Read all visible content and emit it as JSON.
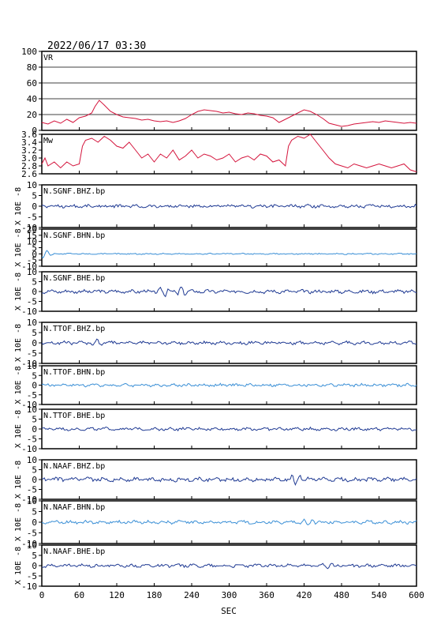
{
  "header": {
    "timestamp": "2022/06/17 03:30"
  },
  "chart_data": {
    "type": "line",
    "xlabel": "SEC",
    "xlim": [
      0,
      600
    ],
    "xticks": [
      0,
      60,
      120,
      180,
      240,
      300,
      360,
      420,
      480,
      540,
      600
    ],
    "panels": [
      {
        "label": "VR",
        "ylim": [
          0,
          100
        ],
        "yticks": [
          0,
          20,
          40,
          60,
          80,
          100
        ],
        "grid": true,
        "color": "#d4143c",
        "series": [
          [
            0,
            10
          ],
          [
            10,
            8
          ],
          [
            20,
            12
          ],
          [
            30,
            9
          ],
          [
            40,
            14
          ],
          [
            50,
            10
          ],
          [
            60,
            16
          ],
          [
            70,
            18
          ],
          [
            80,
            22
          ],
          [
            85,
            30
          ],
          [
            92,
            38
          ],
          [
            100,
            32
          ],
          [
            110,
            24
          ],
          [
            120,
            20
          ],
          [
            130,
            17
          ],
          [
            140,
            16
          ],
          [
            150,
            15
          ],
          [
            160,
            13
          ],
          [
            170,
            14
          ],
          [
            180,
            12
          ],
          [
            190,
            11
          ],
          [
            200,
            12
          ],
          [
            210,
            10
          ],
          [
            220,
            12
          ],
          [
            230,
            15
          ],
          [
            240,
            20
          ],
          [
            250,
            24
          ],
          [
            260,
            26
          ],
          [
            270,
            25
          ],
          [
            280,
            24
          ],
          [
            290,
            22
          ],
          [
            300,
            23
          ],
          [
            310,
            21
          ],
          [
            320,
            20
          ],
          [
            330,
            22
          ],
          [
            340,
            21
          ],
          [
            350,
            19
          ],
          [
            360,
            18
          ],
          [
            370,
            16
          ],
          [
            380,
            10
          ],
          [
            390,
            14
          ],
          [
            400,
            18
          ],
          [
            410,
            22
          ],
          [
            420,
            26
          ],
          [
            430,
            24
          ],
          [
            440,
            20
          ],
          [
            450,
            15
          ],
          [
            460,
            9
          ],
          [
            470,
            7
          ],
          [
            480,
            5
          ],
          [
            490,
            6
          ],
          [
            500,
            8
          ],
          [
            510,
            9
          ],
          [
            520,
            10
          ],
          [
            530,
            11
          ],
          [
            540,
            10
          ],
          [
            550,
            12
          ],
          [
            560,
            11
          ],
          [
            570,
            10
          ],
          [
            580,
            9
          ],
          [
            590,
            10
          ],
          [
            600,
            9
          ]
        ]
      },
      {
        "label": "Mw",
        "ylim": [
          2.6,
          3.6
        ],
        "yticks": [
          2.6,
          2.8,
          3.0,
          3.2,
          3.4,
          3.6
        ],
        "grid": false,
        "color": "#d4143c",
        "series": [
          [
            0,
            2.85
          ],
          [
            5,
            3.0
          ],
          [
            10,
            2.8
          ],
          [
            20,
            2.9
          ],
          [
            30,
            2.75
          ],
          [
            40,
            2.9
          ],
          [
            50,
            2.8
          ],
          [
            60,
            2.85
          ],
          [
            65,
            3.3
          ],
          [
            70,
            3.45
          ],
          [
            80,
            3.5
          ],
          [
            90,
            3.4
          ],
          [
            100,
            3.55
          ],
          [
            110,
            3.45
          ],
          [
            120,
            3.3
          ],
          [
            130,
            3.25
          ],
          [
            140,
            3.4
          ],
          [
            150,
            3.2
          ],
          [
            160,
            3.0
          ],
          [
            170,
            3.1
          ],
          [
            180,
            2.9
          ],
          [
            190,
            3.1
          ],
          [
            200,
            3.0
          ],
          [
            210,
            3.2
          ],
          [
            220,
            2.95
          ],
          [
            230,
            3.05
          ],
          [
            240,
            3.2
          ],
          [
            250,
            3.0
          ],
          [
            260,
            3.1
          ],
          [
            270,
            3.05
          ],
          [
            280,
            2.95
          ],
          [
            290,
            3.0
          ],
          [
            300,
            3.1
          ],
          [
            310,
            2.9
          ],
          [
            320,
            3.0
          ],
          [
            330,
            3.05
          ],
          [
            340,
            2.95
          ],
          [
            350,
            3.1
          ],
          [
            360,
            3.05
          ],
          [
            370,
            2.9
          ],
          [
            380,
            2.95
          ],
          [
            390,
            2.8
          ],
          [
            395,
            3.3
          ],
          [
            400,
            3.45
          ],
          [
            410,
            3.55
          ],
          [
            420,
            3.5
          ],
          [
            430,
            3.6
          ],
          [
            440,
            3.4
          ],
          [
            450,
            3.2
          ],
          [
            460,
            3.0
          ],
          [
            470,
            2.85
          ],
          [
            480,
            2.8
          ],
          [
            490,
            2.75
          ],
          [
            500,
            2.85
          ],
          [
            510,
            2.8
          ],
          [
            520,
            2.75
          ],
          [
            530,
            2.8
          ],
          [
            540,
            2.85
          ],
          [
            550,
            2.8
          ],
          [
            560,
            2.75
          ],
          [
            570,
            2.8
          ],
          [
            580,
            2.85
          ],
          [
            590,
            2.7
          ],
          [
            600,
            2.65
          ]
        ]
      },
      {
        "label": "N.SGNF.BHZ.bp",
        "ylim": [
          -10,
          10
        ],
        "yticks": [
          -10,
          -5,
          0,
          5,
          10
        ],
        "ylabel": "X 10E -8",
        "color": "#1f3a93",
        "amp": 0.6,
        "bursts": []
      },
      {
        "label": "N.SGNF.BHN.bp",
        "ylim": [
          -10,
          20
        ],
        "yticks": [
          -10,
          -5,
          0,
          5,
          10,
          15,
          20
        ],
        "ylabel": "X 10E -8",
        "color": "#3a8fd6",
        "amp": 0.4,
        "bursts": [
          [
            5,
            3.5
          ]
        ]
      },
      {
        "label": "N.SGNF.BHE.bp",
        "ylim": [
          -10,
          10
        ],
        "yticks": [
          -10,
          -5,
          0,
          5,
          10
        ],
        "ylabel": "X 10E -8",
        "color": "#1f3a93",
        "amp": 0.7,
        "bursts": [
          [
            200,
            2.5
          ],
          [
            220,
            2.5
          ]
        ]
      },
      {
        "label": "N.TTOF.BHZ.bp",
        "ylim": [
          -10,
          10
        ],
        "yticks": [
          -10,
          -5,
          0,
          5,
          10
        ],
        "ylabel": "X 10E -8",
        "color": "#1f3a93",
        "amp": 0.6,
        "bursts": [
          [
            85,
            1.5
          ]
        ]
      },
      {
        "label": "N.TTOF.BHN.bp",
        "ylim": [
          -10,
          10
        ],
        "yticks": [
          -10,
          -5,
          0,
          5,
          10
        ],
        "ylabel": "X 10E -8",
        "color": "#3a8fd6",
        "amp": 0.6,
        "bursts": []
      },
      {
        "label": "N.TTOF.BHE.bp",
        "ylim": [
          -10,
          10
        ],
        "yticks": [
          -10,
          -5,
          0,
          5,
          10
        ],
        "ylabel": "X 10E -8",
        "color": "#1f3a93",
        "amp": 0.6,
        "bursts": []
      },
      {
        "label": "N.NAAF.BHZ.bp",
        "ylim": [
          -10,
          10
        ],
        "yticks": [
          -10,
          -5,
          0,
          5,
          10
        ],
        "ylabel": "X 10E -8",
        "color": "#1f3a93",
        "amp": 0.8,
        "bursts": [
          [
            410,
            2.5
          ]
        ]
      },
      {
        "label": "N.NAAF.BHN.bp",
        "ylim": [
          -10,
          10
        ],
        "yticks": [
          -10,
          -5,
          0,
          5,
          10
        ],
        "ylabel": "X 10E -8",
        "color": "#3a8fd6",
        "amp": 0.6,
        "bursts": [
          [
            430,
            1.5
          ]
        ]
      },
      {
        "label": "N.NAAF.BHE.bp",
        "ylim": [
          -10,
          10
        ],
        "yticks": [
          -10,
          -5,
          0,
          5,
          10
        ],
        "ylabel": "X 10E -8",
        "color": "#1f3a93",
        "amp": 0.6,
        "bursts": [
          [
            460,
            1.2
          ]
        ]
      }
    ]
  }
}
